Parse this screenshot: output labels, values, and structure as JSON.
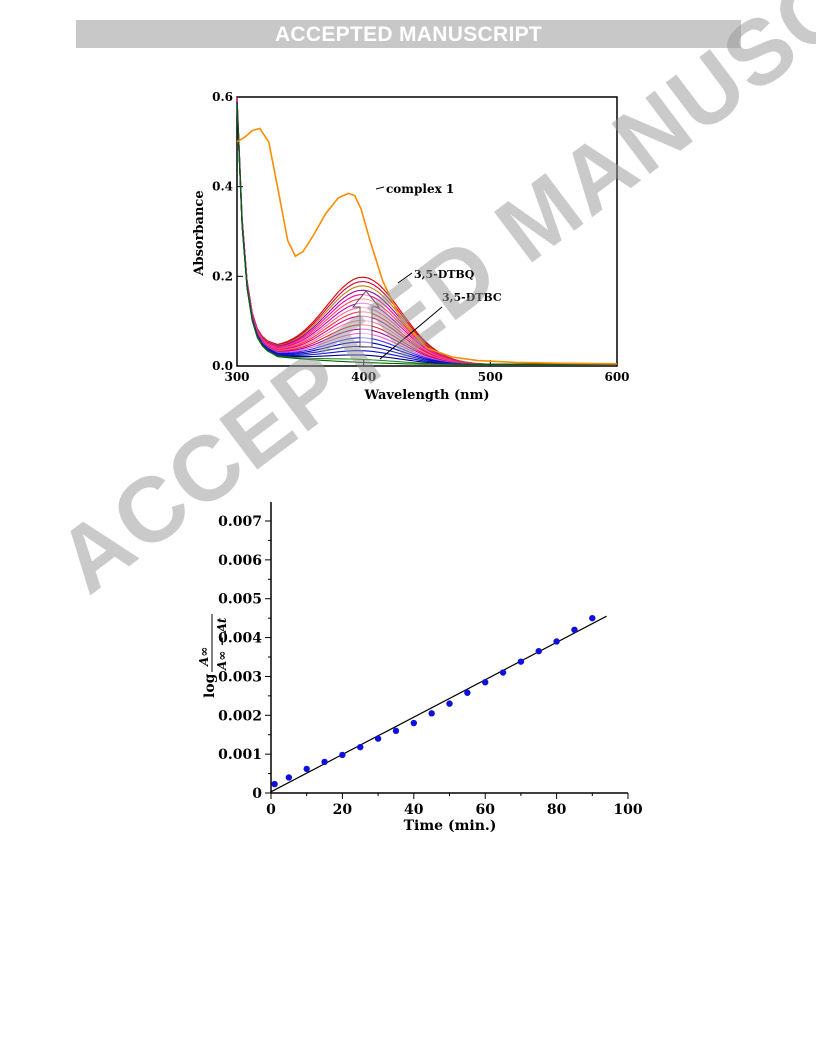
{
  "header": {
    "banner_text": "ACCEPTED MANUSCRIPT"
  },
  "watermark": {
    "text": "ACCEPTED MANUSCRIPT"
  },
  "chart_data": [
    {
      "type": "line",
      "title": "",
      "xlabel": "Wavelength (nm)",
      "ylabel": "Absorbance",
      "xlim": [
        300,
        600
      ],
      "ylim": [
        0.0,
        0.6
      ],
      "xticks": [
        "300",
        "400",
        "500",
        "600"
      ],
      "yticks": [
        "0.0",
        "0.2",
        "0.4",
        "0.6"
      ],
      "annotations": {
        "complex": "complex 1",
        "dtbq": "3,5-DTBQ",
        "dtbc": "3,5-DTBC"
      },
      "complex_series": {
        "name": "complex 1",
        "color": "#ff8c00",
        "x": [
          300,
          306,
          312,
          318,
          325,
          332,
          340,
          346,
          352,
          360,
          370,
          380,
          388,
          393,
          398,
          405,
          415,
          430,
          450,
          470,
          490,
          520,
          560,
          600
        ],
        "y": [
          0.5,
          0.51,
          0.525,
          0.53,
          0.5,
          0.4,
          0.28,
          0.245,
          0.255,
          0.29,
          0.34,
          0.375,
          0.385,
          0.38,
          0.35,
          0.28,
          0.19,
          0.1,
          0.04,
          0.02,
          0.012,
          0.008,
          0.006,
          0.005
        ]
      },
      "spectra_series": {
        "peak_nm": 400,
        "peak_values": [
          0.215,
          0.205,
          0.195,
          0.185,
          0.175,
          0.165,
          0.155,
          0.145,
          0.135,
          0.125,
          0.115,
          0.105,
          0.095,
          0.085,
          0.075,
          0.065,
          0.055,
          0.045,
          0.035,
          0.025,
          0.015
        ],
        "colors": [
          "#e00000",
          "#cc0044",
          "#b8860b",
          "#990099",
          "#ff00aa",
          "#ff4444",
          "#cc00cc",
          "#ff6699",
          "#ff3333",
          "#dd0088",
          "#ff77aa",
          "#ee2222",
          "#aa00aa",
          "#ff55cc",
          "#3333ff",
          "#0000cc",
          "#2222aa",
          "#1111dd",
          "#000088",
          "#228b22",
          "#006400"
        ]
      }
    },
    {
      "type": "scatter",
      "title": "",
      "xlabel": "Time (min.)",
      "ylabel": "log A∞ / (A∞ − At)",
      "xlim": [
        0,
        100
      ],
      "ylim": [
        0,
        0.007
      ],
      "xticks": [
        "0",
        "20",
        "40",
        "60",
        "80",
        "100"
      ],
      "yticks": [
        "0",
        "0.001",
        "0.002",
        "0.003",
        "0.004",
        "0.005",
        "0.006",
        "0.007"
      ],
      "points_color": "#1010dd",
      "x": [
        1,
        5,
        10,
        15,
        20,
        25,
        30,
        35,
        40,
        45,
        50,
        55,
        60,
        65,
        70,
        75,
        80,
        85,
        90
      ],
      "y": [
        0.00023,
        0.0004,
        0.00062,
        0.0008,
        0.00098,
        0.00118,
        0.0014,
        0.0016,
        0.0018,
        0.00205,
        0.0023,
        0.00258,
        0.00285,
        0.0031,
        0.00338,
        0.00365,
        0.0039,
        0.0042,
        0.0045
      ],
      "fit_line": {
        "x": [
          0,
          94
        ],
        "y": [
          3e-05,
          0.00455
        ]
      }
    }
  ]
}
